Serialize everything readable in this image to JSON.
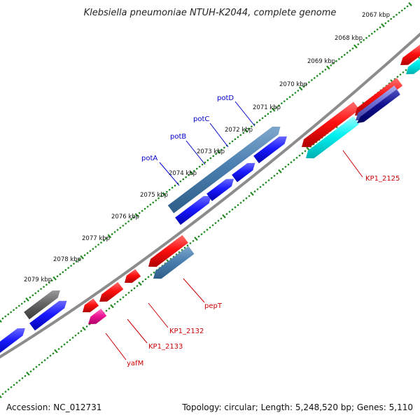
{
  "title": "Klebsiella pneumoniae NTUH-K2044, complete genome",
  "accession": "Accession: NC_012731",
  "summary": "Topology: circular; Length: 5,248,520 bp; Genes: 5,110",
  "scale_labels": [
    "2067 kbp",
    "2068 kbp",
    "2069 kbp",
    "2070 kbp",
    "2071 kbp",
    "2072 kbp",
    "2073 kbp",
    "2074 kbp",
    "2075 kbp",
    "2076 kbp",
    "2077 kbp",
    "2078 kbp",
    "2079 kbp"
  ],
  "gene_labels": {
    "potD": "potD",
    "potC": "potC",
    "potB": "potB",
    "potA": "potA",
    "KP1_2125": "KP1_2125",
    "pepT": "pepT",
    "KP1_2132": "KP1_2132",
    "KP1_2133": "KP1_2133",
    "yafM": "yafM"
  },
  "colors": {
    "backbone": "#8c8c8c",
    "ticks": "#228b22",
    "gene_blue": "#0000ee",
    "gene_steel": "#4a7fb0",
    "gene_red": "#ee0000",
    "gene_cyan": "#00e0e0",
    "gene_navy": "#000090",
    "gene_gray": "#555555",
    "gene_pink": "#ee1090",
    "label_blue": "#0000cc",
    "label_red": "#cc0000"
  }
}
